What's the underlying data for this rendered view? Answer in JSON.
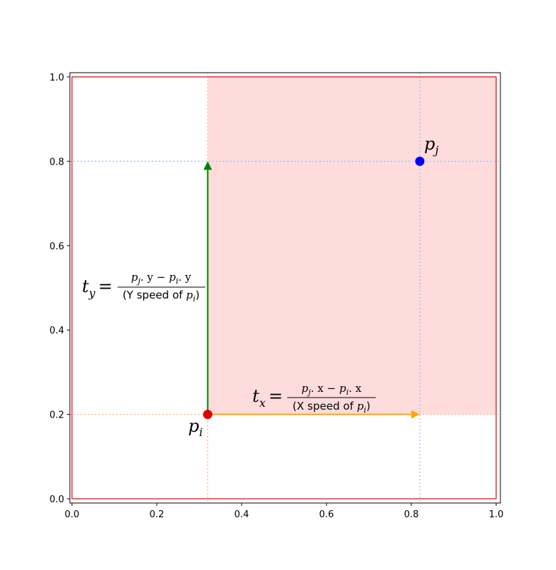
{
  "chart_data": {
    "type": "scatter",
    "title": "",
    "xlabel": "",
    "ylabel": "",
    "xlim": [
      -0.005,
      1.01
    ],
    "ylim": [
      -0.01,
      1.01
    ],
    "xticks": [
      0.0,
      0.2,
      0.4,
      0.6,
      0.8,
      1.0
    ],
    "yticks": [
      0.0,
      0.2,
      0.4,
      0.6,
      0.8,
      1.0
    ],
    "xtick_labels": [
      "0.0",
      "0.2",
      "0.4",
      "0.6",
      "0.8",
      "1.0"
    ],
    "ytick_labels": [
      "0.0",
      "0.2",
      "0.4",
      "0.6",
      "0.8",
      "1.0"
    ],
    "boundary_rect": {
      "x": [
        0,
        1
      ],
      "y": [
        0,
        1
      ],
      "color": "#e00000"
    },
    "shaded_region": {
      "x": [
        0.32,
        1.0
      ],
      "y": [
        0.2,
        1.0
      ],
      "color": "#ffdcdc"
    },
    "points": [
      {
        "id": "pi",
        "x": 0.32,
        "y": 0.2,
        "color": "#e00000",
        "guide_color": "#ffb080"
      },
      {
        "id": "pj",
        "x": 0.82,
        "y": 0.8,
        "color": "#0000ff",
        "guide_color": "#8fbfef"
      }
    ],
    "arrows": [
      {
        "id": "tx",
        "from": [
          0.32,
          0.2
        ],
        "to": [
          0.82,
          0.2
        ],
        "color": "#ffa500"
      },
      {
        "id": "ty",
        "from": [
          0.32,
          0.2
        ],
        "to": [
          0.32,
          0.8
        ],
        "color": "#008000"
      }
    ],
    "labels": {
      "pi": {
        "base": "p",
        "sub": "i"
      },
      "pj": {
        "base": "p",
        "sub": "j"
      },
      "tx": {
        "lhs": "t",
        "lhs_sub": "x",
        "eq": "=",
        "num_a": "p",
        "num_a_sub": "j",
        "num_a_attr": ". x − ",
        "num_b": "p",
        "num_b_sub": "i",
        "num_b_attr": ". x",
        "den_pre": "(X speed of ",
        "den_p": "p",
        "den_sub": "i",
        "den_post": ")"
      },
      "ty": {
        "lhs": "t",
        "lhs_sub": "y",
        "eq": "=",
        "num_a": "p",
        "num_a_sub": "j",
        "num_a_attr": ". y − ",
        "num_b": "p",
        "num_b_sub": "i",
        "num_b_attr": ". y",
        "den_pre": "(Y speed of ",
        "den_p": "p",
        "den_sub": "i",
        "den_post": ")"
      }
    }
  }
}
